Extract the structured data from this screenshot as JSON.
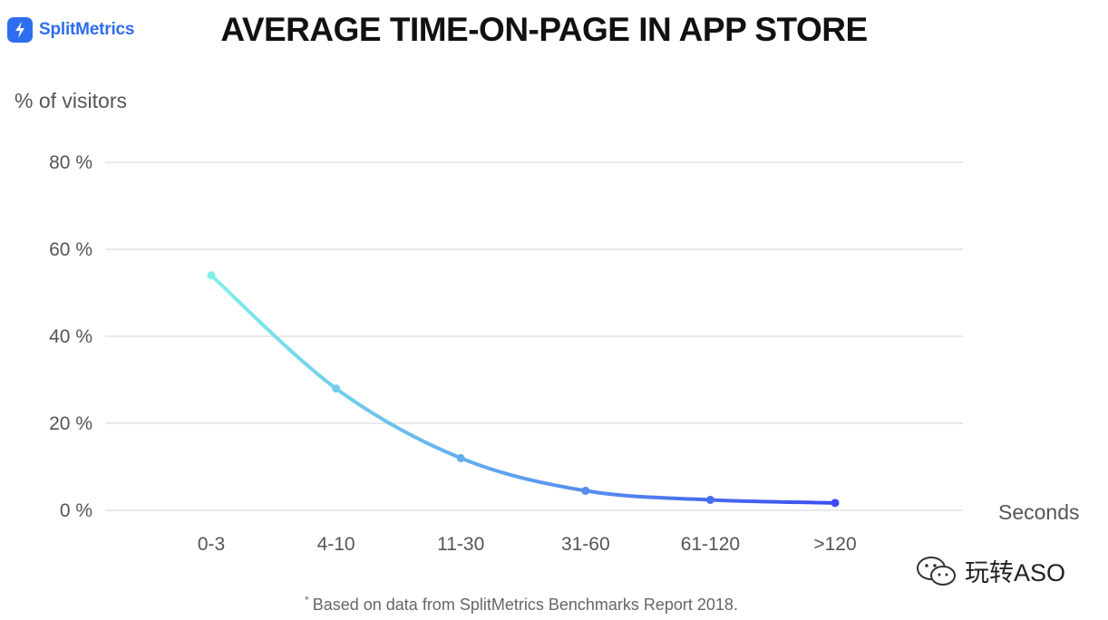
{
  "logo": {
    "text": "SplitMetrics"
  },
  "title": "AVERAGE TIME-ON-PAGE IN APP STORE",
  "footnote": {
    "marker": "*",
    "text": "Based on data from SplitMetrics Benchmarks Report 2018."
  },
  "watermark": {
    "text": "玩转ASO"
  },
  "colors": {
    "brand": "#2f6df0",
    "line_start": "#7ff0ea",
    "line_end": "#3b4bf2",
    "grid": "#e2e2e2"
  },
  "chart_data": {
    "type": "line",
    "ylabel": "% of visitors",
    "xlabel": "Seconds",
    "categories": [
      "0-3",
      "4-10",
      "11-30",
      "31-60",
      "61-120",
      ">120"
    ],
    "series": [
      {
        "values": [
          54,
          28,
          12,
          4.5,
          2.4,
          1.7
        ]
      }
    ],
    "ylim": [
      0,
      80
    ],
    "yticks": [
      0,
      20,
      40,
      60,
      80
    ],
    "ytick_labels": [
      "0 %",
      "20 %",
      "40 %",
      "60 %",
      "80 %"
    ],
    "grid": true,
    "smooth": true,
    "legend": "none"
  }
}
